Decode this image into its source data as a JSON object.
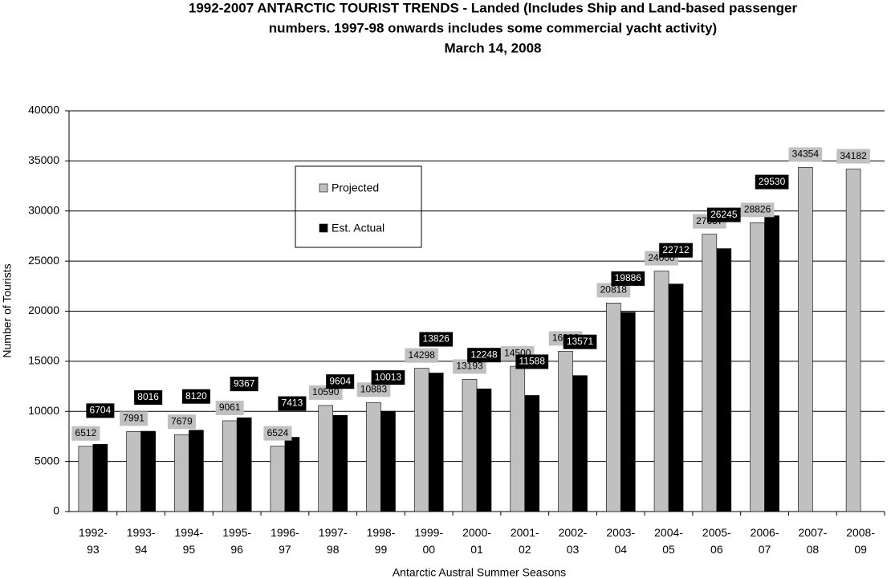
{
  "chart_data": {
    "type": "bar",
    "title": [
      "1992-2007 ANTARCTIC TOURIST TRENDS - Landed (Includes Ship and Land-based passenger",
      "numbers. 1997-98 onwards includes some commercial yacht activity)",
      "March 14, 2008"
    ],
    "x_label": "Antarctic Austral Summer Seasons",
    "y_label": "Number of Tourists",
    "categories": [
      "1992-93",
      "1993-94",
      "1994-95",
      "1995-96",
      "1996-97",
      "1997-98",
      "1998-99",
      "1999-00",
      "2000-01",
      "2001-02",
      "2002-03",
      "2003-04",
      "2004-05",
      "2005-06",
      "2006-07",
      "2007-08",
      "2008-09"
    ],
    "series": [
      {
        "name": "Projected",
        "color": "#c0c0c0",
        "values": [
          6512,
          7991,
          7679,
          9061,
          6524,
          10590,
          10883,
          14298,
          13193,
          14500,
          16000,
          20818,
          24000,
          27687,
          28826,
          34354,
          34182
        ]
      },
      {
        "name": "Est. Actual",
        "color": "#000000",
        "values": [
          6704,
          8016,
          8120,
          9367,
          7413,
          9604,
          10013,
          13826,
          12248,
          11588,
          13571,
          19886,
          22712,
          26245,
          29530,
          null,
          null
        ]
      }
    ],
    "ylim": [
      0,
      40000
    ],
    "yticks": [
      0,
      5000,
      10000,
      15000,
      20000,
      25000,
      30000,
      35000,
      40000
    ],
    "grid": true
  }
}
